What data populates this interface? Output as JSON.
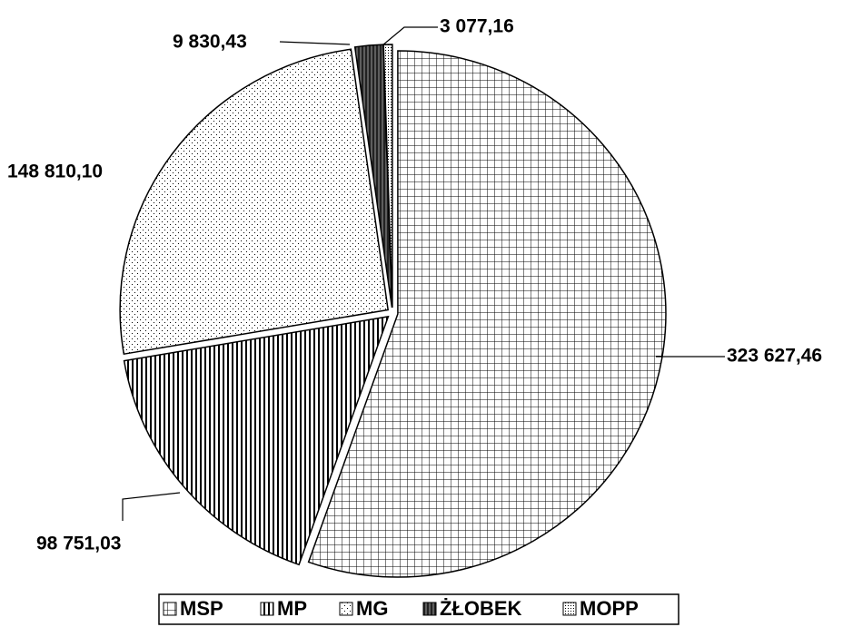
{
  "chart_data": {
    "type": "pie",
    "categories": [
      "MSP",
      "MP",
      "MG",
      "ŻŁOBEK",
      "MOPP"
    ],
    "values": [
      323627.46,
      98751.03,
      148810.1,
      9830.43,
      3077.16
    ],
    "value_labels": [
      "323 627,46",
      "98 751,03",
      "148 810,10",
      "9 830,43",
      "3 077,16"
    ],
    "patterns": [
      "grid",
      "vertical",
      "dots",
      "dense-vertical",
      "fine-dots"
    ],
    "legend": "bottom"
  }
}
